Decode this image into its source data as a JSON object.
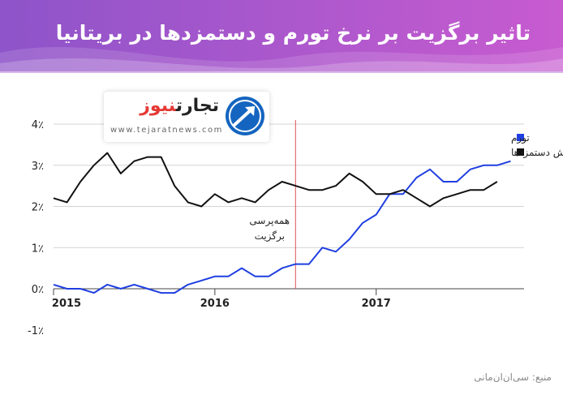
{
  "header": {
    "title": "تاثیر برگزیت بر نرخ تورم و دستمزدها در بریتانیا"
  },
  "logo": {
    "name_part1": "تجارت",
    "name_part2": "نیوز",
    "url": "www.tejaratnews.com"
  },
  "footer": {
    "source": "منبع: سی‌ان‌ان‌مانی"
  },
  "colors": {
    "banner_start": "#8e54c9",
    "banner_end": "#c85bd0",
    "inflation": "#1f3fe0",
    "wages": "#111111",
    "marker": "#e05050"
  },
  "chart_data": {
    "type": "line",
    "yaxis": {
      "min": -1,
      "max": 4,
      "ticks": [
        {
          "value": 4,
          "label": "4٪"
        },
        {
          "value": 3,
          "label": "3٪"
        },
        {
          "value": 2,
          "label": "2٪"
        },
        {
          "value": 1,
          "label": "1٪"
        },
        {
          "value": 0,
          "label": "0٪"
        },
        {
          "value": -1,
          "label": "-1٪"
        }
      ]
    },
    "xaxis": {
      "min": 0,
      "max": 35,
      "ticks": [
        {
          "value": 0,
          "label": "2015"
        },
        {
          "value": 12,
          "label": "2016"
        },
        {
          "value": 24,
          "label": "2017"
        }
      ]
    },
    "grid": true,
    "legend_position": "top-right",
    "series": [
      {
        "name": "تورم",
        "color": "#1f3fe0",
        "values": [
          0.1,
          0.0,
          0.0,
          -0.1,
          0.1,
          0.0,
          0.1,
          0.0,
          -0.1,
          -0.1,
          0.1,
          0.2,
          0.3,
          0.3,
          0.5,
          0.3,
          0.3,
          0.5,
          0.6,
          0.6,
          1.0,
          0.9,
          1.2,
          1.6,
          1.8,
          2.3,
          2.3,
          2.7,
          2.9,
          2.6,
          2.6,
          2.9,
          3.0,
          3.0,
          3.1
        ]
      },
      {
        "name": "افزایش دستمزدها",
        "color": "#111111",
        "values": [
          2.2,
          2.1,
          2.6,
          3.0,
          3.3,
          2.8,
          3.1,
          3.2,
          3.2,
          2.5,
          2.1,
          2.0,
          2.3,
          2.1,
          2.2,
          2.1,
          2.4,
          2.6,
          2.5,
          2.4,
          2.4,
          2.5,
          2.8,
          2.6,
          2.3,
          2.3,
          2.4,
          2.2,
          2.0,
          2.2,
          2.3,
          2.4,
          2.4,
          2.6
        ]
      }
    ],
    "annotation": {
      "x": 18,
      "line1": "همه‌پرسی",
      "line2": "برگزیت"
    }
  }
}
